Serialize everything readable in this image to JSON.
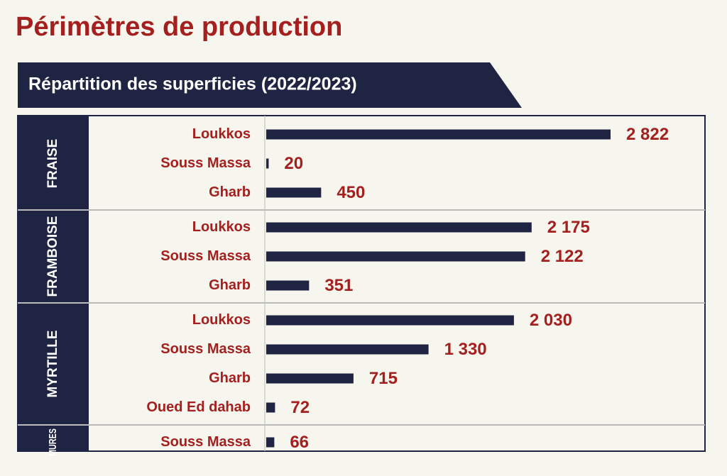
{
  "chart_data": {
    "type": "bar",
    "orientation": "horizontal",
    "title": "Périmètres de production",
    "subtitle": "Répartition des superficies (2022/2023)",
    "color": "#1f2442",
    "label_color": "#a3201f",
    "groups": [
      {
        "name": "FRAISE",
        "categories": [
          "Loukkos",
          "Souss Massa",
          "Gharb"
        ],
        "values": [
          2822,
          20,
          450
        ],
        "value_labels": [
          "2 822",
          "20",
          "450"
        ]
      },
      {
        "name": "FRAMBOISE",
        "categories": [
          "Loukkos",
          "Souss Massa",
          "Gharb"
        ],
        "values": [
          2175,
          2122,
          351
        ],
        "value_labels": [
          "2 175",
          "2 122",
          "351"
        ]
      },
      {
        "name": "MYRTILLE",
        "categories": [
          "Loukkos",
          "Souss Massa",
          "Gharb",
          "Oued Ed dahab"
        ],
        "values": [
          2030,
          1330,
          715,
          72
        ],
        "value_labels": [
          "2 030",
          "1 330",
          "715",
          "72"
        ]
      },
      {
        "name": "MURES",
        "categories": [
          "Souss Massa"
        ],
        "values": [
          66
        ],
        "value_labels": [
          "66"
        ]
      }
    ]
  }
}
